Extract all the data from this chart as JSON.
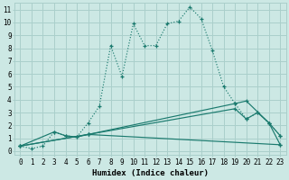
{
  "xlabel": "Humidex (Indice chaleur)",
  "bg_color": "#cce8e4",
  "grid_color": "#aacfcb",
  "line_color": "#1a7a6e",
  "xlim": [
    -0.5,
    23.5
  ],
  "ylim": [
    -0.3,
    11.5
  ],
  "xticks": [
    0,
    1,
    2,
    3,
    4,
    5,
    6,
    7,
    8,
    9,
    10,
    11,
    12,
    13,
    14,
    15,
    16,
    17,
    18,
    19,
    20,
    21,
    22,
    23
  ],
  "yticks": [
    0,
    1,
    2,
    3,
    4,
    5,
    6,
    7,
    8,
    9,
    10,
    11
  ],
  "series": [
    {
      "x": [
        0,
        1,
        2,
        3,
        4,
        5,
        6,
        7,
        8,
        9,
        10,
        11,
        12,
        13,
        14,
        15,
        16,
        17,
        18,
        19,
        20,
        21,
        22,
        23
      ],
      "y": [
        0.4,
        0.2,
        0.4,
        1.5,
        1.2,
        1.1,
        2.2,
        3.5,
        8.2,
        5.8,
        9.9,
        8.2,
        8.2,
        9.9,
        10.1,
        11.2,
        10.3,
        7.8,
        5.0,
        3.7,
        2.5,
        3.0,
        2.2,
        1.2
      ],
      "style": "dotted"
    },
    {
      "x": [
        0,
        3,
        4,
        5,
        6,
        23
      ],
      "y": [
        0.4,
        1.5,
        1.2,
        1.1,
        1.3,
        0.5
      ],
      "style": "solid"
    },
    {
      "x": [
        0,
        6,
        19,
        20,
        22,
        23
      ],
      "y": [
        0.4,
        1.3,
        3.7,
        3.9,
        2.2,
        0.5
      ],
      "style": "solid"
    },
    {
      "x": [
        0,
        6,
        19,
        20,
        21,
        22,
        23
      ],
      "y": [
        0.4,
        1.3,
        3.3,
        2.5,
        3.0,
        2.2,
        1.2
      ],
      "style": "solid"
    }
  ],
  "tick_fontsize": 5.5,
  "xlabel_fontsize": 6.5,
  "linewidth": 0.85,
  "markersize": 3.5
}
